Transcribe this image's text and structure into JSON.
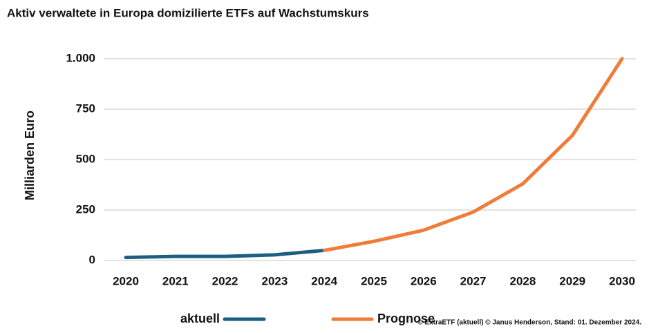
{
  "chart_data": {
    "type": "line",
    "title": "Aktiv verwaltete in Europa domizilierte ETFs auf Wachstumskurs",
    "y_label": "Milliarden Euro",
    "categories": [
      "2020",
      "2021",
      "2022",
      "2023",
      "2024",
      "2025",
      "2026",
      "2027",
      "2028",
      "2029",
      "2030"
    ],
    "series": [
      {
        "name": "aktuell",
        "color": "#1c5f82",
        "values": [
          15,
          20,
          20,
          28,
          50,
          null,
          null,
          null,
          null,
          null,
          null
        ]
      },
      {
        "name": "Prognose",
        "color": "#f07c3a",
        "values": [
          null,
          null,
          null,
          null,
          50,
          95,
          150,
          240,
          380,
          620,
          1000
        ]
      }
    ],
    "ylim": [
      0,
      1000
    ],
    "yticks": [
      0,
      250,
      500,
      750,
      {
        "value": 1000,
        "label": "1.000"
      }
    ],
    "grid": true,
    "source": "© ExtraETF (aktuell) © Janus Henderson, Stand: 01. Dezember 2024."
  }
}
